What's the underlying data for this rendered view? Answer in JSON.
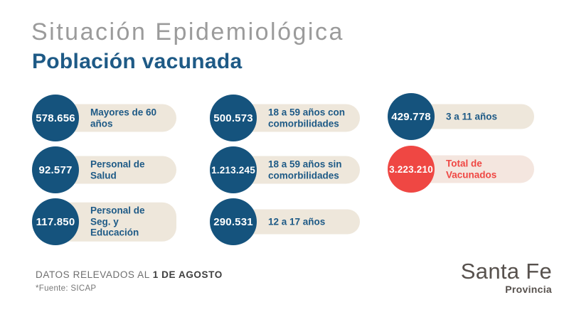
{
  "title": "Situación Epidemiológica",
  "subtitle": "Población vacunada",
  "stats": [
    {
      "value": "578.656",
      "label": "Mayores de 60 años"
    },
    {
      "value": "92.577",
      "label": "Personal de Salud"
    },
    {
      "value": "117.850",
      "label": "Personal de\nSeg. y Educación"
    },
    {
      "value": "500.573",
      "label": "18 a 59 años con\ncomorbilidades"
    },
    {
      "value": "1.213.245",
      "label": "18 a 59 años sin\ncomorbilidades"
    },
    {
      "value": "290.531",
      "label": "12 a 17 años"
    },
    {
      "value": "429.778",
      "label": "3 a 11 años"
    },
    {
      "value": "3.223.210",
      "label": "Total de Vacunados",
      "highlight": true
    }
  ],
  "footer": {
    "datos_prefix": "DATOS RELEVADOS AL ",
    "datos_date": "1 DE AGOSTO",
    "fuente": "*Fuente: SICAP"
  },
  "logo": {
    "name": "Santa Fe",
    "sub": "Provincia"
  },
  "colors": {
    "circle_blue": "#15537d",
    "circle_red": "#ef4743",
    "pill_beige": "#eee7db",
    "pill_pink": "#f4e6df",
    "label_blue": "#1e5a86",
    "label_red": "#ef4743",
    "title_gray": "#9b9b9b",
    "logo_brown": "#57514d"
  },
  "chart_data": {
    "type": "table",
    "title": "Situación Epidemiológica - Población vacunada",
    "categories": [
      "Mayores de 60 años",
      "Personal de Salud",
      "Personal de Seg. y Educación",
      "18 a 59 años con comorbilidades",
      "18 a 59 años sin comorbilidades",
      "12 a 17 años",
      "3 a 11 años",
      "Total de Vacunados"
    ],
    "values": [
      578656,
      92577,
      117850,
      500573,
      1213245,
      290531,
      429778,
      3223210
    ],
    "source": "*Fuente: SICAP",
    "as_of": "1 DE AGOSTO"
  }
}
